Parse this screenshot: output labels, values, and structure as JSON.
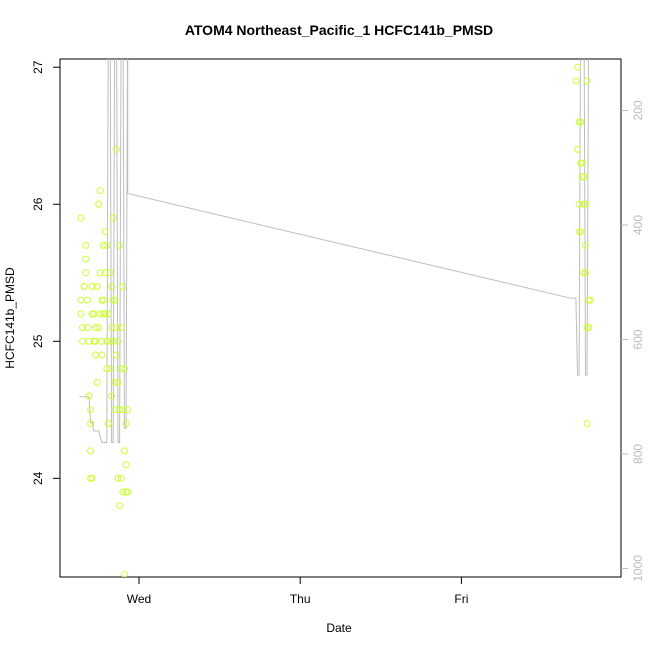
{
  "chart_data": {
    "type": "scatter",
    "title": "ATOM4 Northeast_Pacific_1 HCFC141b_PMSD",
    "xlabel": "Date",
    "ylabel": "HCFC141b_PMSD",
    "x_ticks": [
      "Wed",
      "Thu",
      "Fri"
    ],
    "x_tick_values": [
      0,
      1,
      2
    ],
    "xlim": [
      -0.49,
      2.99
    ],
    "ylim": [
      23.28,
      27.06
    ],
    "y_ticks": [
      24,
      25,
      26,
      27
    ],
    "y2_ticks": [
      200,
      400,
      600,
      800,
      1000
    ],
    "y2lim": [
      1015,
      110
    ],
    "grid": false,
    "colors": {
      "points": "#ccff33",
      "line": "#bdbdbd",
      "axis": "#000000",
      "axis_right": "#bdbdbd"
    },
    "points": [
      [
        -0.36,
        25.9
      ],
      [
        -0.36,
        25.3
      ],
      [
        -0.36,
        25.2
      ],
      [
        -0.35,
        25.1
      ],
      [
        -0.35,
        25.0
      ],
      [
        -0.34,
        25.4
      ],
      [
        -0.34,
        25.4
      ],
      [
        -0.33,
        25.7
      ],
      [
        -0.33,
        25.6
      ],
      [
        -0.33,
        25.5
      ],
      [
        -0.32,
        25.3
      ],
      [
        -0.32,
        25.1
      ],
      [
        -0.31,
        25.0
      ],
      [
        -0.31,
        24.6
      ],
      [
        -0.31,
        24.6
      ],
      [
        -0.3,
        24.5
      ],
      [
        -0.3,
        24.4
      ],
      [
        -0.3,
        24.2
      ],
      [
        -0.3,
        24.0
      ],
      [
        -0.29,
        24.0
      ],
      [
        -0.29,
        25.4
      ],
      [
        -0.29,
        25.2
      ],
      [
        -0.28,
        25.2
      ],
      [
        -0.28,
        25.0
      ],
      [
        -0.28,
        25.0
      ],
      [
        -0.27,
        24.9
      ],
      [
        -0.27,
        25.1
      ],
      [
        -0.27,
        25.0
      ],
      [
        -0.26,
        24.7
      ],
      [
        -0.26,
        25.4
      ],
      [
        -0.26,
        25.4
      ],
      [
        -0.25,
        26.0
      ],
      [
        -0.25,
        26.0
      ],
      [
        -0.25,
        25.1
      ],
      [
        -0.24,
        26.1
      ],
      [
        -0.24,
        25.5
      ],
      [
        -0.24,
        25.2
      ],
      [
        -0.23,
        25.3
      ],
      [
        -0.23,
        25.0
      ],
      [
        -0.23,
        24.9
      ],
      [
        -0.22,
        25.7
      ],
      [
        -0.22,
        25.3
      ],
      [
        -0.22,
        25.2
      ],
      [
        -0.21,
        25.8
      ],
      [
        -0.21,
        25.5
      ],
      [
        -0.21,
        25.2
      ],
      [
        -0.2,
        25.7
      ],
      [
        -0.2,
        25.0
      ],
      [
        -0.2,
        24.8
      ],
      [
        -0.19,
        24.4
      ],
      [
        -0.19,
        24.4
      ],
      [
        -0.19,
        25.2
      ],
      [
        -0.18,
        25.5
      ],
      [
        -0.18,
        25.0
      ],
      [
        -0.18,
        24.8
      ],
      [
        -0.17,
        25.4
      ],
      [
        -0.17,
        25.1
      ],
      [
        -0.17,
        24.6
      ],
      [
        -0.16,
        25.9
      ],
      [
        -0.16,
        25.3
      ],
      [
        -0.16,
        25.0
      ],
      [
        -0.15,
        24.5
      ],
      [
        -0.15,
        25.3
      ],
      [
        -0.15,
        24.7
      ],
      [
        -0.14,
        26.4
      ],
      [
        -0.14,
        25.1
      ],
      [
        -0.14,
        24.9
      ],
      [
        -0.13,
        24.7
      ],
      [
        -0.13,
        24.0
      ],
      [
        -0.13,
        25.0
      ],
      [
        -0.12,
        24.5
      ],
      [
        -0.12,
        23.8
      ],
      [
        -0.12,
        25.7
      ],
      [
        -0.11,
        24.8
      ],
      [
        -0.11,
        24.0
      ],
      [
        -0.11,
        25.1
      ],
      [
        -0.1,
        25.4
      ],
      [
        -0.1,
        23.9
      ],
      [
        -0.1,
        24.5
      ],
      [
        -0.09,
        24.8
      ],
      [
        -0.09,
        23.3
      ],
      [
        -0.09,
        24.2
      ],
      [
        -0.08,
        23.9
      ],
      [
        -0.08,
        24.4
      ],
      [
        -0.08,
        24.1
      ],
      [
        -0.07,
        24.5
      ],
      [
        -0.07,
        23.9
      ],
      [
        2.71,
        26.9
      ],
      [
        2.72,
        27.0
      ],
      [
        2.72,
        26.4
      ],
      [
        2.73,
        26.6
      ],
      [
        2.73,
        26.0
      ],
      [
        2.73,
        25.8
      ],
      [
        2.74,
        26.6
      ],
      [
        2.74,
        26.3
      ],
      [
        2.74,
        25.8
      ],
      [
        2.75,
        26.2
      ],
      [
        2.75,
        26.3
      ],
      [
        2.76,
        25.5
      ],
      [
        2.76,
        26.0
      ],
      [
        2.76,
        26.2
      ],
      [
        2.77,
        25.5
      ],
      [
        2.77,
        26.0
      ],
      [
        2.77,
        25.7
      ],
      [
        2.78,
        26.9
      ],
      [
        2.78,
        25.1
      ],
      [
        2.78,
        24.4
      ],
      [
        2.79,
        25.1
      ],
      [
        2.79,
        25.3
      ],
      [
        2.8,
        25.3
      ]
    ],
    "line_y2": [
      [
        -0.37,
        700
      ],
      [
        -0.31,
        700
      ],
      [
        -0.3,
        745
      ],
      [
        -0.29,
        745
      ],
      [
        -0.28,
        760
      ],
      [
        -0.26,
        760
      ],
      [
        -0.25,
        760
      ],
      [
        -0.23,
        780
      ],
      [
        -0.2,
        780
      ],
      [
        -0.19,
        -20
      ],
      [
        -0.18,
        -20
      ],
      [
        -0.17,
        780
      ],
      [
        -0.16,
        780
      ],
      [
        -0.15,
        -20
      ],
      [
        -0.14,
        -20
      ],
      [
        -0.13,
        780
      ],
      [
        -0.12,
        780
      ],
      [
        -0.11,
        -20
      ],
      [
        -0.1,
        -20
      ],
      [
        -0.09,
        755
      ],
      [
        -0.08,
        755
      ],
      [
        -0.07,
        -20
      ],
      [
        -0.07,
        -20
      ],
      [
        -0.07,
        345
      ],
      [
        2.68,
        528
      ],
      [
        2.71,
        528
      ],
      [
        2.72,
        662
      ],
      [
        2.73,
        662
      ],
      [
        2.74,
        -20
      ],
      [
        2.76,
        -20
      ],
      [
        2.77,
        662
      ],
      [
        2.78,
        662
      ],
      [
        2.79,
        -20
      ]
    ]
  }
}
